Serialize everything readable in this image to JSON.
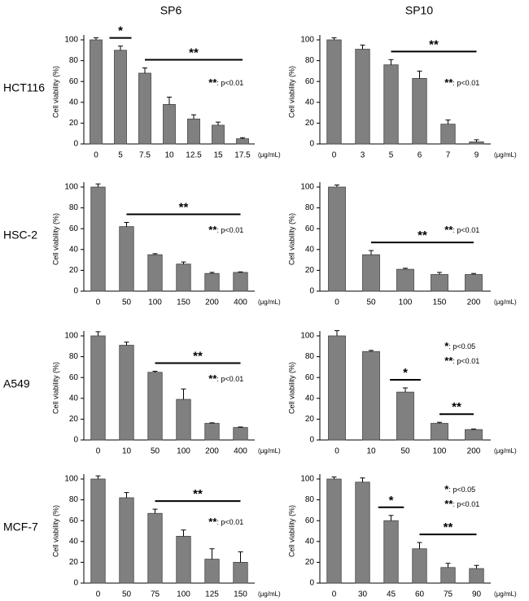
{
  "column_titles": [
    "SP6",
    "SP10"
  ],
  "row_labels": [
    "HCT116",
    "HSC-2",
    "A549",
    "MCF-7"
  ],
  "chart_data": [
    {
      "type": "bar",
      "ylabel": "Cell viability (%)",
      "xunit": "(μg/mL)",
      "color": "#808080",
      "categories": [
        "0",
        "5",
        "7.5",
        "10",
        "12.5",
        "15",
        "17.5"
      ],
      "values": [
        100,
        90,
        68,
        38,
        24,
        18,
        5
      ],
      "errors": [
        2,
        4,
        5,
        7,
        4,
        3,
        1
      ],
      "ylim": [
        0,
        100
      ],
      "yticks": [
        0,
        20,
        40,
        60,
        80,
        100
      ],
      "significance": [
        {
          "text": "*",
          "from": "5",
          "to": "5"
        },
        {
          "text": "**",
          "from": "7.5",
          "to": "17.5"
        }
      ],
      "notes": [
        {
          "symbol": "**",
          "text": ": p<0.01"
        }
      ]
    },
    {
      "type": "bar",
      "ylabel": "Cell viability (%)",
      "xunit": "(μg/mL)",
      "color": "#808080",
      "categories": [
        "0",
        "3",
        "5",
        "6",
        "7",
        "9"
      ],
      "values": [
        100,
        91,
        76,
        63,
        19,
        2
      ],
      "errors": [
        2,
        4,
        5,
        7,
        4,
        2
      ],
      "ylim": [
        0,
        100
      ],
      "yticks": [
        0,
        20,
        40,
        60,
        80,
        100
      ],
      "significance": [
        {
          "text": "**",
          "from": "5",
          "to": "9"
        }
      ],
      "notes": [
        {
          "symbol": "**",
          "text": ": p<0.01"
        }
      ]
    },
    {
      "type": "bar",
      "ylabel": "Cell viability (%)",
      "xunit": "(μg/mL)",
      "color": "#808080",
      "categories": [
        "0",
        "50",
        "100",
        "150",
        "200",
        "400"
      ],
      "values": [
        100,
        62,
        35,
        26,
        17,
        18
      ],
      "errors": [
        3,
        4,
        1,
        2,
        1,
        0.5
      ],
      "ylim": [
        0,
        100
      ],
      "yticks": [
        0,
        20,
        40,
        60,
        80,
        100
      ],
      "significance": [
        {
          "text": "**",
          "from": "50",
          "to": "400"
        }
      ],
      "notes": [
        {
          "symbol": "**",
          "text": ": p<0.01"
        }
      ]
    },
    {
      "type": "bar",
      "ylabel": "Cell viability (%)",
      "xunit": "(μg/mL)",
      "color": "#808080",
      "categories": [
        "0",
        "50",
        "100",
        "150",
        "200"
      ],
      "values": [
        100,
        35,
        21,
        16,
        16
      ],
      "errors": [
        2,
        4,
        1,
        2,
        1
      ],
      "ylim": [
        0,
        100
      ],
      "yticks": [
        0,
        20,
        40,
        60,
        80,
        100
      ],
      "significance": [
        {
          "text": "**",
          "from": "50",
          "to": "200"
        }
      ],
      "notes": [
        {
          "symbol": "**",
          "text": ": p<0.01"
        }
      ]
    },
    {
      "type": "bar",
      "ylabel": "Cell viability (%)",
      "xunit": "(μg/mL)",
      "color": "#808080",
      "categories": [
        "0",
        "10",
        "50",
        "100",
        "200",
        "400"
      ],
      "values": [
        100,
        91,
        65,
        39,
        16,
        12
      ],
      "errors": [
        4,
        3,
        1,
        10,
        0.5,
        0.5
      ],
      "ylim": [
        0,
        100
      ],
      "yticks": [
        0,
        20,
        40,
        60,
        80,
        100
      ],
      "significance": [
        {
          "text": "**",
          "from": "50",
          "to": "400"
        }
      ],
      "notes": [
        {
          "symbol": "**",
          "text": ": p<0.01"
        }
      ]
    },
    {
      "type": "bar",
      "ylabel": "Cell viability (%)",
      "xunit": "(μg/mL)",
      "color": "#808080",
      "categories": [
        "0",
        "10",
        "50",
        "100",
        "200"
      ],
      "values": [
        100,
        85,
        46,
        16,
        10
      ],
      "errors": [
        5,
        1,
        4,
        1,
        0.5
      ],
      "ylim": [
        0,
        100
      ],
      "yticks": [
        0,
        20,
        40,
        60,
        80,
        100
      ],
      "significance": [
        {
          "text": "*",
          "from": "50",
          "to": "50"
        },
        {
          "text": "**",
          "from": "100",
          "to": "200"
        }
      ],
      "notes": [
        {
          "symbol": "*",
          "text": ": p<0.05"
        },
        {
          "symbol": "**",
          "text": ": p<0.01"
        }
      ]
    },
    {
      "type": "bar",
      "ylabel": "Cell viability (%)",
      "xunit": "(μg/mL)",
      "color": "#808080",
      "categories": [
        "0",
        "50",
        "75",
        "100",
        "125",
        "150"
      ],
      "values": [
        100,
        82,
        67,
        45,
        23,
        20
      ],
      "errors": [
        3,
        5,
        4,
        6,
        10,
        10
      ],
      "ylim": [
        0,
        100
      ],
      "yticks": [
        0,
        20,
        40,
        60,
        80,
        100
      ],
      "significance": [
        {
          "text": "**",
          "from": "75",
          "to": "150"
        }
      ],
      "notes": [
        {
          "symbol": "**",
          "text": ": p<0.01"
        }
      ]
    },
    {
      "type": "bar",
      "ylabel": "Cell viability (%)",
      "xunit": "(μg/mL)",
      "color": "#808080",
      "categories": [
        "0",
        "30",
        "45",
        "60",
        "75",
        "90"
      ],
      "values": [
        100,
        97,
        60,
        33,
        15,
        14
      ],
      "errors": [
        2,
        4,
        5,
        6,
        4,
        3
      ],
      "ylim": [
        0,
        100
      ],
      "yticks": [
        0,
        20,
        40,
        60,
        80,
        100
      ],
      "significance": [
        {
          "text": "*",
          "from": "45",
          "to": "45"
        },
        {
          "text": "**",
          "from": "60",
          "to": "90"
        }
      ],
      "notes": [
        {
          "symbol": "*",
          "text": ": p<0.05"
        },
        {
          "symbol": "**",
          "text": ": p<0.01"
        }
      ]
    }
  ]
}
